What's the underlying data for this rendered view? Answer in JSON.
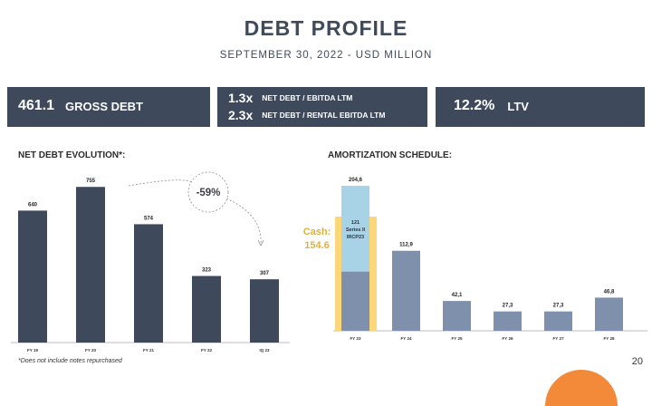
{
  "header": {
    "title": "DEBT PROFILE",
    "subtitle": "SEPTEMBER 30, 2022 - USD MILLION"
  },
  "kpis": {
    "gross": {
      "value": "461.1",
      "label": "GROSS DEBT"
    },
    "net_ebitda": {
      "value": "1.3x",
      "label": "NET DEBT / EBITDA LTM"
    },
    "net_rental": {
      "value": "2.3x",
      "label": "NET DEBT / RENTAL EBITDA LTM"
    },
    "ltv": {
      "value": "12.2%",
      "label": "LTV"
    }
  },
  "footnote": "*Does not include notes repurchased",
  "page_number": "20",
  "colors": {
    "dark": "#3e4a5c",
    "slate": "#7f90ad",
    "light_blue": "#a8d3e6",
    "cash": "#fbd77a",
    "cash_text": "#e0b23a"
  },
  "chart_data": [
    {
      "type": "bar",
      "title": "NET DEBT EVOLUTION*:",
      "categories": [
        "FY 19",
        "FY 20",
        "FY 21",
        "FY 22",
        "IQ 23"
      ],
      "values": [
        640,
        755,
        574,
        323,
        307
      ],
      "value_labels": [
        "640",
        "755",
        "574",
        "323",
        "307"
      ],
      "annotation": "-59%",
      "ylim": [
        0,
        800
      ]
    },
    {
      "type": "bar",
      "title": "AMORTIZATION SCHEDULE:",
      "categories": [
        "FY 23",
        "FY 24",
        "FY 25",
        "FY 26",
        "FY 27",
        "FY 28"
      ],
      "values": [
        204.6,
        112.9,
        42.1,
        27.3,
        27.3,
        46.8
      ],
      "value_labels": [
        "204,6",
        "112,9",
        "42,1",
        "27,3",
        "27,3",
        "46,8"
      ],
      "segment": {
        "category": "FY 23",
        "value": 121,
        "label_lines": [
          "121",
          "Series II",
          "IRCP23"
        ]
      },
      "cash": {
        "label": "Cash:",
        "value": "154.6"
      },
      "ylim": [
        0,
        220
      ]
    }
  ]
}
